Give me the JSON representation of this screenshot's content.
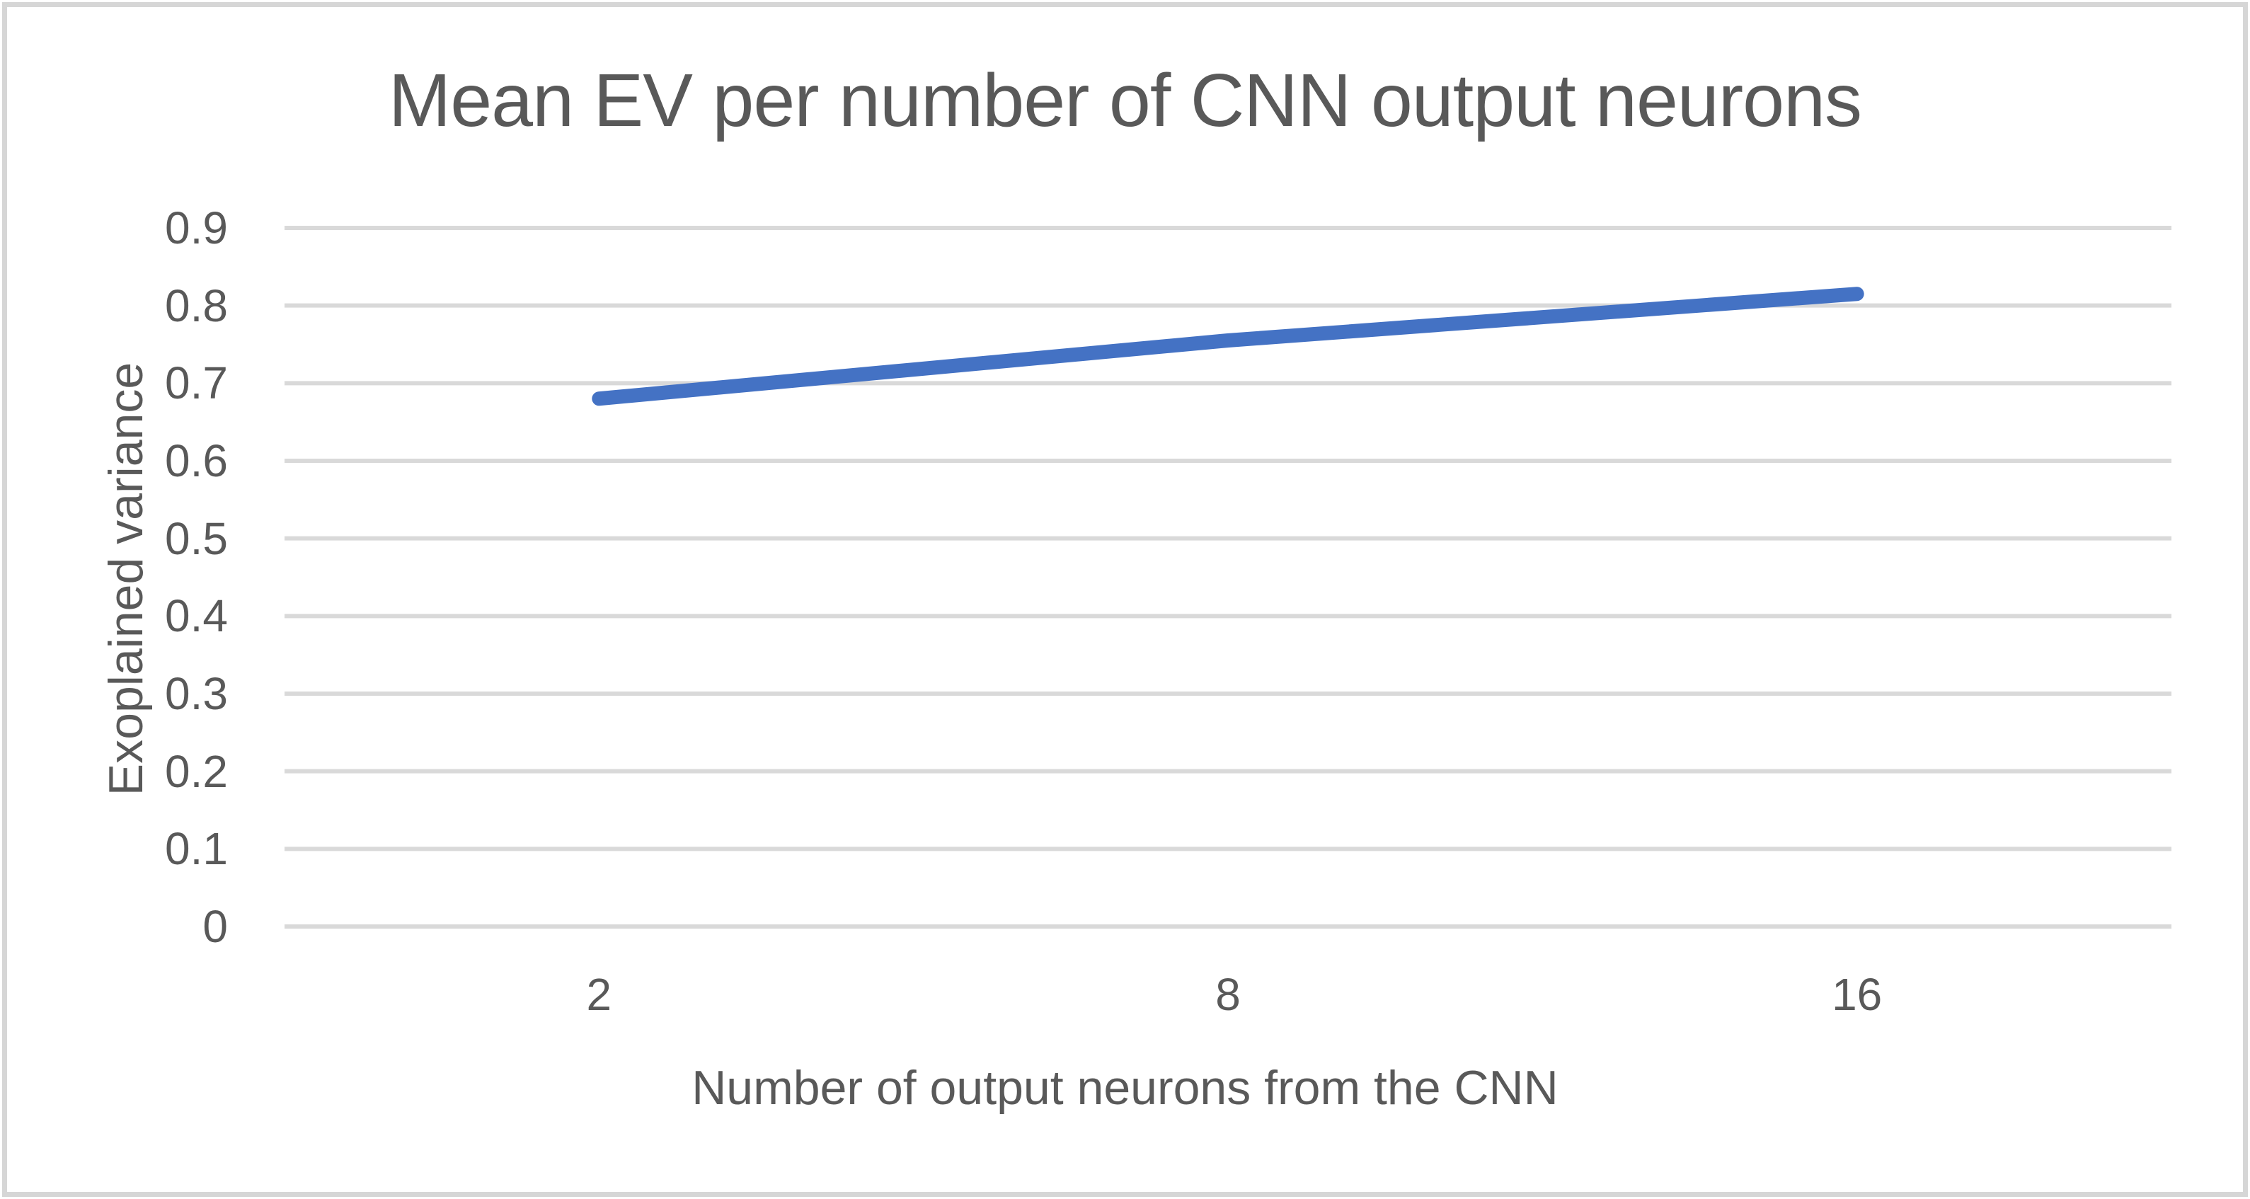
{
  "chart_data": {
    "type": "line",
    "title": "Mean EV per number of CNN output neurons",
    "xlabel": "Number of output neurons from the CNN",
    "ylabel": "Exoplained variance",
    "categories": [
      "2",
      "8",
      "16"
    ],
    "series": [
      {
        "values": [
          0.68,
          0.755,
          0.815
        ],
        "color": "#4472C4"
      }
    ],
    "ylim": [
      0,
      0.9
    ],
    "yticks": [
      "0.9",
      "0.8",
      "0.7",
      "0.6",
      "0.5",
      "0.4",
      "0.3",
      "0.2",
      "0.1",
      "0"
    ],
    "grid": "horizontal",
    "legend": "none",
    "colors": {
      "text": "#595959",
      "gridline": "#D9D9D9",
      "line": "#4472C4",
      "frame_border": "#D6D6D6",
      "background": "#FFFFFF"
    }
  }
}
